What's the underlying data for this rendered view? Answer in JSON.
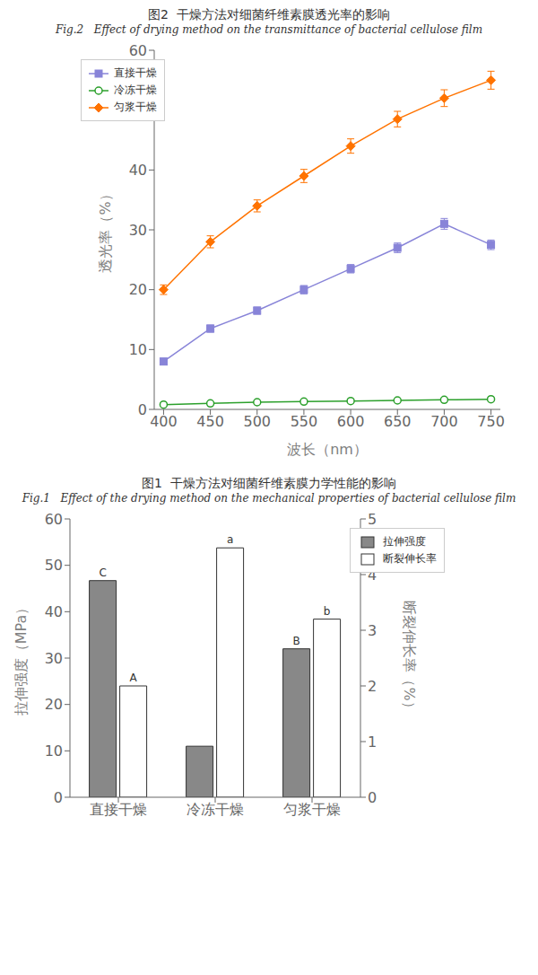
{
  "chart_data": [
    {
      "type": "line",
      "title": "图2  干燥方法对细菌纤维素膜透光率的影响",
      "subtitle": "Fig.2   Effect of drying method on the transmittance of bacterial cellulose film",
      "xlabel": "波长（nm）",
      "ylabel": "透光率（%）",
      "x": [
        400,
        450,
        500,
        550,
        600,
        650,
        700,
        750
      ],
      "xlim": [
        390,
        760
      ],
      "xticks": [
        400,
        450,
        500,
        550,
        600,
        650,
        700,
        750
      ],
      "ylim": [
        0,
        60
      ],
      "yticks": [
        0,
        10,
        20,
        30,
        40,
        50,
        60
      ],
      "grid": false,
      "legend": "upper left",
      "series": [
        {
          "name": "直接干燥",
          "color": "#8884d8",
          "marker": "square",
          "values": [
            8.0,
            13.5,
            16.5,
            20.0,
            23.5,
            27.0,
            31.0,
            27.5
          ],
          "errors": [
            0.5,
            0.6,
            0.6,
            0.7,
            0.7,
            0.8,
            0.9,
            0.8
          ]
        },
        {
          "name": "冷冻干燥",
          "color": "#2ca02c",
          "marker": "open_circle",
          "values": [
            0.8,
            1.0,
            1.2,
            1.3,
            1.4,
            1.5,
            1.6,
            1.7
          ],
          "errors": [
            0.05,
            0.05,
            0.05,
            0.05,
            0.05,
            0.05,
            0.05,
            0.05
          ]
        },
        {
          "name": "匀浆干燥",
          "color": "#ff7300",
          "marker": "diamond",
          "values": [
            20.0,
            28.0,
            34.0,
            39.0,
            44.0,
            48.5,
            52.0,
            55.0
          ],
          "errors": [
            0.8,
            1.0,
            1.0,
            1.1,
            1.2,
            1.3,
            1.4,
            1.5
          ]
        }
      ]
    },
    {
      "type": "bar",
      "title": "图1  干燥方法对细菌纤维素膜力学性能的影响",
      "subtitle": "Fig.1   Effect of the drying method on the mechanical properties of bacterial cellulose film",
      "categories": [
        "直接干燥",
        "冷冻干燥",
        "匀浆干燥"
      ],
      "ylabel": "拉伸强度（MPa）",
      "y2label": "断裂伸长率（%）",
      "ylim": [
        0,
        60
      ],
      "yticks": [
        0,
        10,
        20,
        30,
        40,
        50,
        60
      ],
      "y2lim": [
        0,
        5
      ],
      "y2ticks": [
        0,
        1,
        2,
        3,
        4,
        5
      ],
      "grid": false,
      "legend": "upper right",
      "series": [
        {
          "name": "拉伸强度",
          "color": "#888888",
          "values": [
            46.7,
            11.0,
            32.0
          ],
          "annotations": [
            "C",
            null,
            "B"
          ]
        },
        {
          "name": "断裂伸长率",
          "color": "#ffffff",
          "axis": "y2",
          "values": [
            2.0,
            4.48,
            3.2
          ],
          "annotations": [
            "A",
            "a",
            "b"
          ]
        }
      ]
    }
  ]
}
